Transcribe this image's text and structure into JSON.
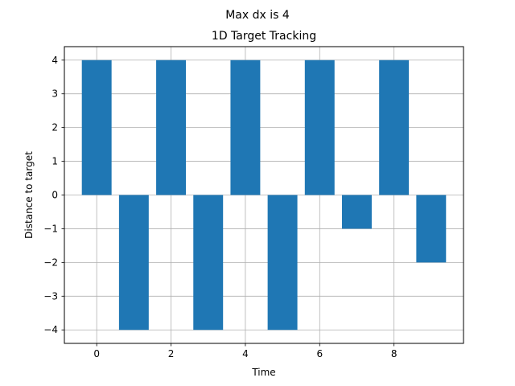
{
  "chart_data": {
    "type": "bar",
    "suptitle": "Max dx is 4",
    "title": "1D Target Tracking",
    "xlabel": "Time",
    "ylabel": "Distance to target",
    "x": [
      0,
      1,
      2,
      3,
      4,
      5,
      6,
      7,
      8,
      9
    ],
    "values": [
      4,
      -4,
      4,
      -4,
      4,
      -4,
      4,
      -1,
      4,
      -2
    ],
    "xlim": [
      -0.87,
      9.87
    ],
    "ylim": [
      -4.4,
      4.4
    ],
    "xticks": [
      0,
      2,
      4,
      6,
      8
    ],
    "yticks": [
      -4,
      -3,
      -2,
      -1,
      0,
      1,
      2,
      3,
      4
    ],
    "xtick_labels": [
      "0",
      "2",
      "4",
      "6",
      "8"
    ],
    "ytick_labels": [
      "−4",
      "−3",
      "−2",
      "−1",
      "0",
      "1",
      "2",
      "3",
      "4"
    ],
    "bar_color": "#1f77b4",
    "grid": true
  }
}
